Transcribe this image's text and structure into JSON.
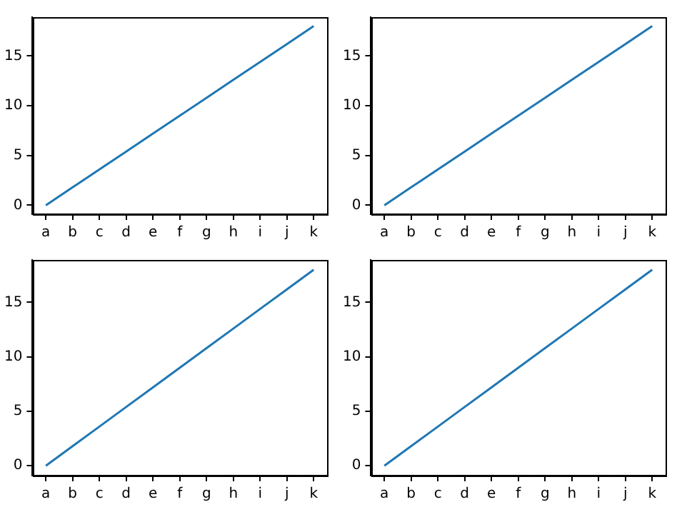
{
  "chart_data": [
    {
      "type": "line",
      "categories": [
        "a",
        "b",
        "c",
        "d",
        "e",
        "f",
        "g",
        "h",
        "i",
        "j",
        "k"
      ],
      "series": [
        {
          "color": "#1f77b4",
          "values": [
            0,
            1.8,
            3.6,
            5.4,
            7.2,
            9,
            10.8,
            12.6,
            14.4,
            16.2,
            18
          ]
        }
      ],
      "ylim": [
        -0.9,
        18.9
      ],
      "yticks": [
        0,
        5,
        10,
        15
      ],
      "grid": false,
      "legend": false,
      "marker": "none"
    },
    {
      "type": "line",
      "categories": [
        "a",
        "b",
        "c",
        "d",
        "e",
        "f",
        "g",
        "h",
        "i",
        "j",
        "k"
      ],
      "series": [
        {
          "color": "#1f77b4",
          "values": [
            0,
            1.8,
            3.6,
            5.4,
            7.2,
            9,
            10.8,
            12.6,
            14.4,
            16.2,
            18
          ]
        }
      ],
      "ylim": [
        -0.9,
        18.9
      ],
      "yticks": [
        0,
        5,
        10,
        15
      ],
      "grid": false,
      "legend": false,
      "marker": "none"
    },
    {
      "type": "line",
      "categories": [
        "a",
        "b",
        "c",
        "d",
        "e",
        "f",
        "g",
        "h",
        "i",
        "j",
        "k"
      ],
      "series": [
        {
          "color": "#1f77b4",
          "values": [
            0,
            1.8,
            3.6,
            5.4,
            7.2,
            9,
            10.8,
            12.6,
            14.4,
            16.2,
            18
          ]
        }
      ],
      "ylim": [
        -0.9,
        18.9
      ],
      "yticks": [
        0,
        5,
        10,
        15
      ],
      "grid": false,
      "legend": false,
      "marker": "none"
    },
    {
      "type": "line",
      "categories": [
        "a",
        "b",
        "c",
        "d",
        "e",
        "f",
        "g",
        "h",
        "i",
        "j",
        "k"
      ],
      "series": [
        {
          "color": "#1f77b4",
          "values": [
            0,
            1.8,
            3.6,
            5.4,
            7.2,
            9,
            10.8,
            12.6,
            14.4,
            16.2,
            18
          ]
        }
      ],
      "ylim": [
        -0.9,
        18.9
      ],
      "yticks": [
        0,
        5,
        10,
        15
      ],
      "grid": false,
      "legend": false,
      "marker": "none"
    }
  ]
}
